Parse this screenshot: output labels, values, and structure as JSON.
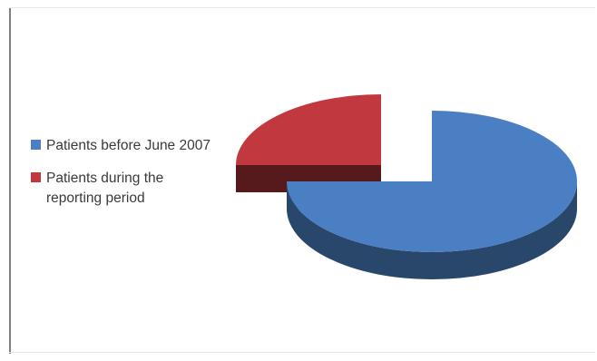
{
  "chart_data": {
    "type": "pie",
    "style": "3d-exploded",
    "categories": [
      "Patients before June 2007",
      "Patients during the reporting period"
    ],
    "values": [
      75,
      25
    ],
    "colors": [
      "#4a7fc3",
      "#c1393f"
    ],
    "legend": {
      "placement": "left",
      "entries": [
        "Patients before June 2007",
        "Patients during the reporting period"
      ]
    }
  }
}
